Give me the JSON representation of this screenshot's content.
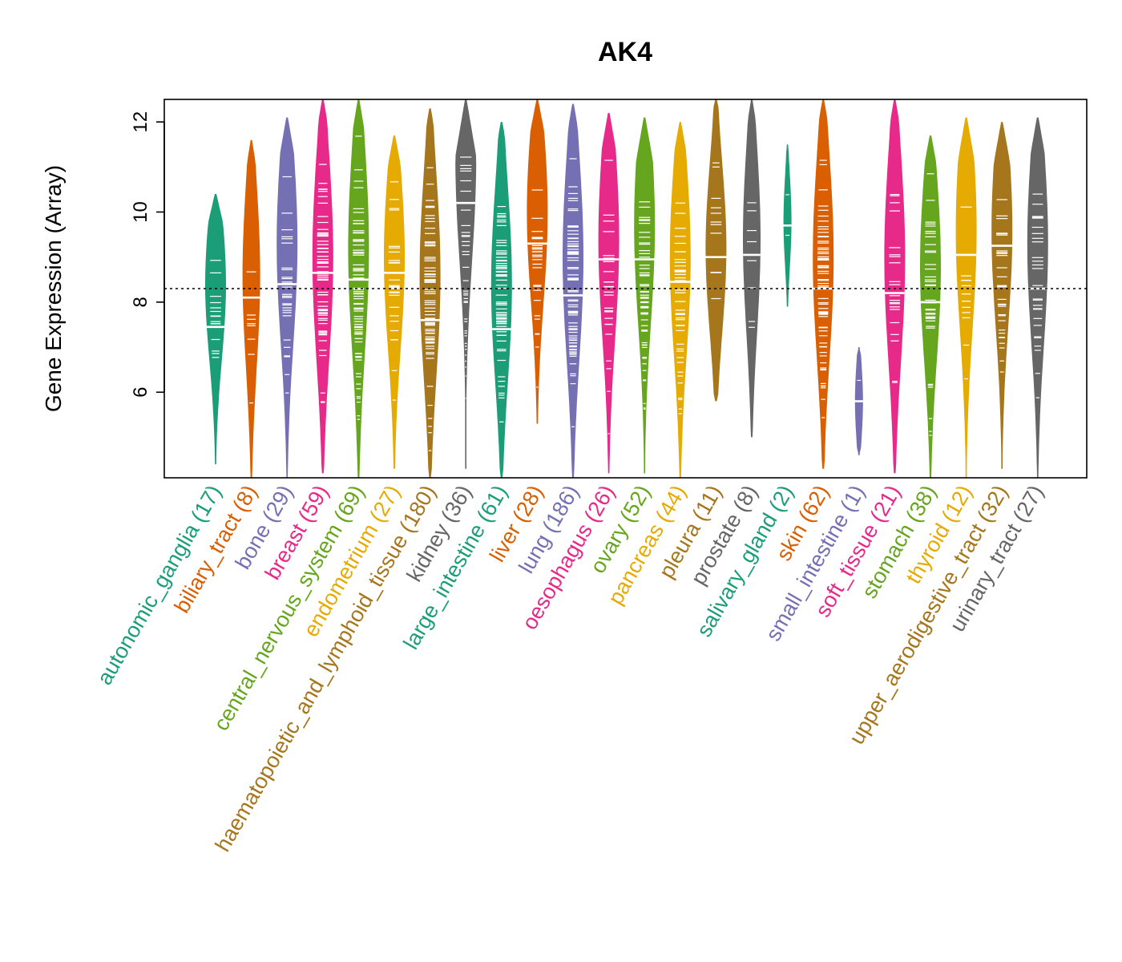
{
  "chart_data": {
    "type": "violin-beeswarm",
    "title": "AK4",
    "ylabel": "Gene Expression (Array)",
    "xlabel": "",
    "ylim": [
      4.1,
      12.5
    ],
    "yticks": [
      6,
      8,
      10,
      12
    ],
    "reference_line": 8.3,
    "categories": [
      {
        "name": "autonomic_ganglia",
        "n": 17,
        "count_label": "(17)",
        "color": "#1B9E77",
        "min": 4.4,
        "max": 10.4,
        "median": 7.45,
        "peak": 8.4
      },
      {
        "name": "biliary_tract",
        "n": 8,
        "count_label": "(8)",
        "color": "#D95F02",
        "min": 4.1,
        "max": 11.6,
        "median": 8.1,
        "peak": 8.6
      },
      {
        "name": "bone",
        "n": 29,
        "count_label": "(29)",
        "color": "#7570B3",
        "min": 4.1,
        "max": 12.1,
        "median": 8.4,
        "peak": 9.3
      },
      {
        "name": "breast",
        "n": 59,
        "count_label": "(59)",
        "color": "#E7298A",
        "min": 4.2,
        "max": 12.5,
        "median": 8.65,
        "peak": 9.0
      },
      {
        "name": "central_nervous_system",
        "n": 69,
        "count_label": "(69)",
        "color": "#66A61E",
        "min": 4.1,
        "max": 12.5,
        "median": 8.5,
        "peak": 9.2
      },
      {
        "name": "endometrium",
        "n": 27,
        "count_label": "(27)",
        "color": "#E6AB02",
        "min": 4.3,
        "max": 11.7,
        "median": 8.65,
        "peak": 9.0
      },
      {
        "name": "haematopoietic_and_lymphoid_tissue",
        "n": 180,
        "count_label": "(180)",
        "color": "#A6761D",
        "min": 4.1,
        "max": 12.3,
        "median": 7.6,
        "peak": 8.6
      },
      {
        "name": "kidney",
        "n": 36,
        "count_label": "(36)",
        "color": "#666666",
        "min": 4.3,
        "max": 12.5,
        "median": 10.2,
        "peak": 11.2
      },
      {
        "name": "large_intestine",
        "n": 61,
        "count_label": "(61)",
        "color": "#1B9E77",
        "min": 4.1,
        "max": 12.0,
        "median": 7.4,
        "peak": 8.4
      },
      {
        "name": "liver",
        "n": 28,
        "count_label": "(28)",
        "color": "#D95F02",
        "min": 5.3,
        "max": 12.5,
        "median": 9.3,
        "peak": 10.0
      },
      {
        "name": "lung",
        "n": 186,
        "count_label": "(186)",
        "color": "#7570B3",
        "min": 4.1,
        "max": 12.4,
        "median": 8.15,
        "peak": 9.0
      },
      {
        "name": "oesophagus",
        "n": 26,
        "count_label": "(26)",
        "color": "#E7298A",
        "min": 4.2,
        "max": 12.2,
        "median": 8.95,
        "peak": 9.4
      },
      {
        "name": "ovary",
        "n": 52,
        "count_label": "(52)",
        "color": "#66A61E",
        "min": 4.2,
        "max": 12.1,
        "median": 8.95,
        "peak": 9.7
      },
      {
        "name": "pancreas",
        "n": 44,
        "count_label": "(44)",
        "color": "#E6AB02",
        "min": 4.1,
        "max": 12.0,
        "median": 8.45,
        "peak": 9.0
      },
      {
        "name": "pleura",
        "n": 11,
        "count_label": "(11)",
        "color": "#A6761D",
        "min": 5.8,
        "max": 12.5,
        "median": 9.0,
        "peak": 9.2
      },
      {
        "name": "prostate",
        "n": 8,
        "count_label": "(8)",
        "color": "#666666",
        "min": 5.0,
        "max": 12.5,
        "median": 9.05,
        "peak": 9.4
      },
      {
        "name": "salivary_gland",
        "n": 2,
        "count_label": "(2)",
        "color": "#1B9E77",
        "min": 7.9,
        "max": 11.5,
        "median": 9.7,
        "peak": 9.8
      },
      {
        "name": "skin",
        "n": 62,
        "count_label": "(62)",
        "color": "#D95F02",
        "min": 4.3,
        "max": 12.5,
        "median": 8.3,
        "peak": 9.0
      },
      {
        "name": "small_intestine",
        "n": 1,
        "count_label": "(1)",
        "color": "#7570B3",
        "min": 4.6,
        "max": 7.0,
        "median": 5.8,
        "peak": 5.8
      },
      {
        "name": "soft_tissue",
        "n": 21,
        "count_label": "(21)",
        "color": "#E7298A",
        "min": 4.2,
        "max": 12.5,
        "median": 8.2,
        "peak": 9.0
      },
      {
        "name": "stomach",
        "n": 38,
        "count_label": "(38)",
        "color": "#66A61E",
        "min": 4.1,
        "max": 11.7,
        "median": 8.0,
        "peak": 8.8
      },
      {
        "name": "thyroid",
        "n": 12,
        "count_label": "(12)",
        "color": "#E6AB02",
        "min": 4.1,
        "max": 12.1,
        "median": 9.05,
        "peak": 9.6
      },
      {
        "name": "upper_aerodigestive_tract",
        "n": 32,
        "count_label": "(32)",
        "color": "#A6761D",
        "min": 4.3,
        "max": 12.0,
        "median": 9.25,
        "peak": 9.6
      },
      {
        "name": "urinary_tract",
        "n": 27,
        "count_label": "(27)",
        "color": "#666666",
        "min": 4.1,
        "max": 12.1,
        "median": 8.3,
        "peak": 9.3
      }
    ]
  }
}
